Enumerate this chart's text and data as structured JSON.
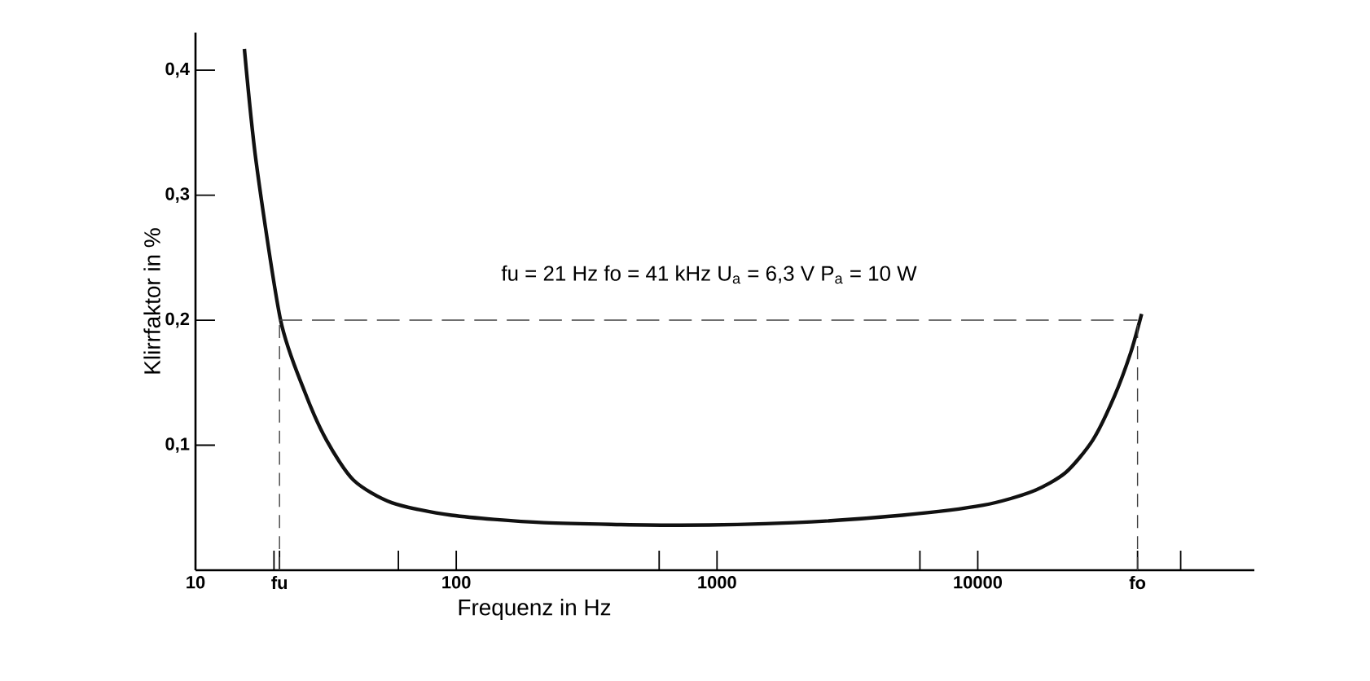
{
  "chart_data": {
    "type": "line",
    "xlabel": "Frequenz in Hz",
    "ylabel": "Klirrfaktor in %",
    "log": "x",
    "marker": "none",
    "line_style": "solid",
    "xlim": [
      10,
      115000
    ],
    "ylim": [
      0,
      0.43
    ],
    "xticks": [
      10,
      {
        "value": 20,
        "label": null
      },
      {
        "value": 21,
        "label": "fu"
      },
      {
        "value": 60,
        "label": null
      },
      100,
      {
        "value": 600,
        "label": null
      },
      1000,
      {
        "value": 6000,
        "label": null
      },
      10000,
      {
        "value": 41000,
        "label": "fo"
      },
      {
        "value": 60000,
        "label": null
      }
    ],
    "yticks": [
      {
        "value": 0.1,
        "label": "0,1"
      },
      {
        "value": 0.2,
        "label": "0,2"
      },
      {
        "value": 0.3,
        "label": "0,3"
      },
      {
        "value": 0.4,
        "label": "0,4"
      }
    ],
    "series": [
      {
        "color": "#111111",
        "x": [
          15.4,
          17.1,
          21.2,
          26.2,
          31.8,
          40.4,
          56.6,
          96,
          217,
          719,
          1970,
          5130,
          10500,
          16200,
          21700,
          27600,
          33400,
          38600,
          42500
        ],
        "values": [
          0.417,
          0.326,
          0.2,
          0.143,
          0.104,
          0.072,
          0.054,
          0.044,
          0.038,
          0.036,
          0.038,
          0.044,
          0.052,
          0.063,
          0.078,
          0.104,
          0.139,
          0.174,
          0.205
        ]
      }
    ],
    "ref_lines": [
      {
        "axis": "x",
        "value": 21,
        "line_style": "dashed"
      },
      {
        "axis": "x",
        "value": 41000,
        "line_style": "dashed"
      },
      {
        "axis": "y",
        "value": 0.2,
        "line_style": "dashed"
      }
    ],
    "annotations": [
      "fu = 21 Hz  fo = 41 kHz  U$_{a}$ = 6,3 V  P$_{a}$ = 10 W"
    ]
  }
}
